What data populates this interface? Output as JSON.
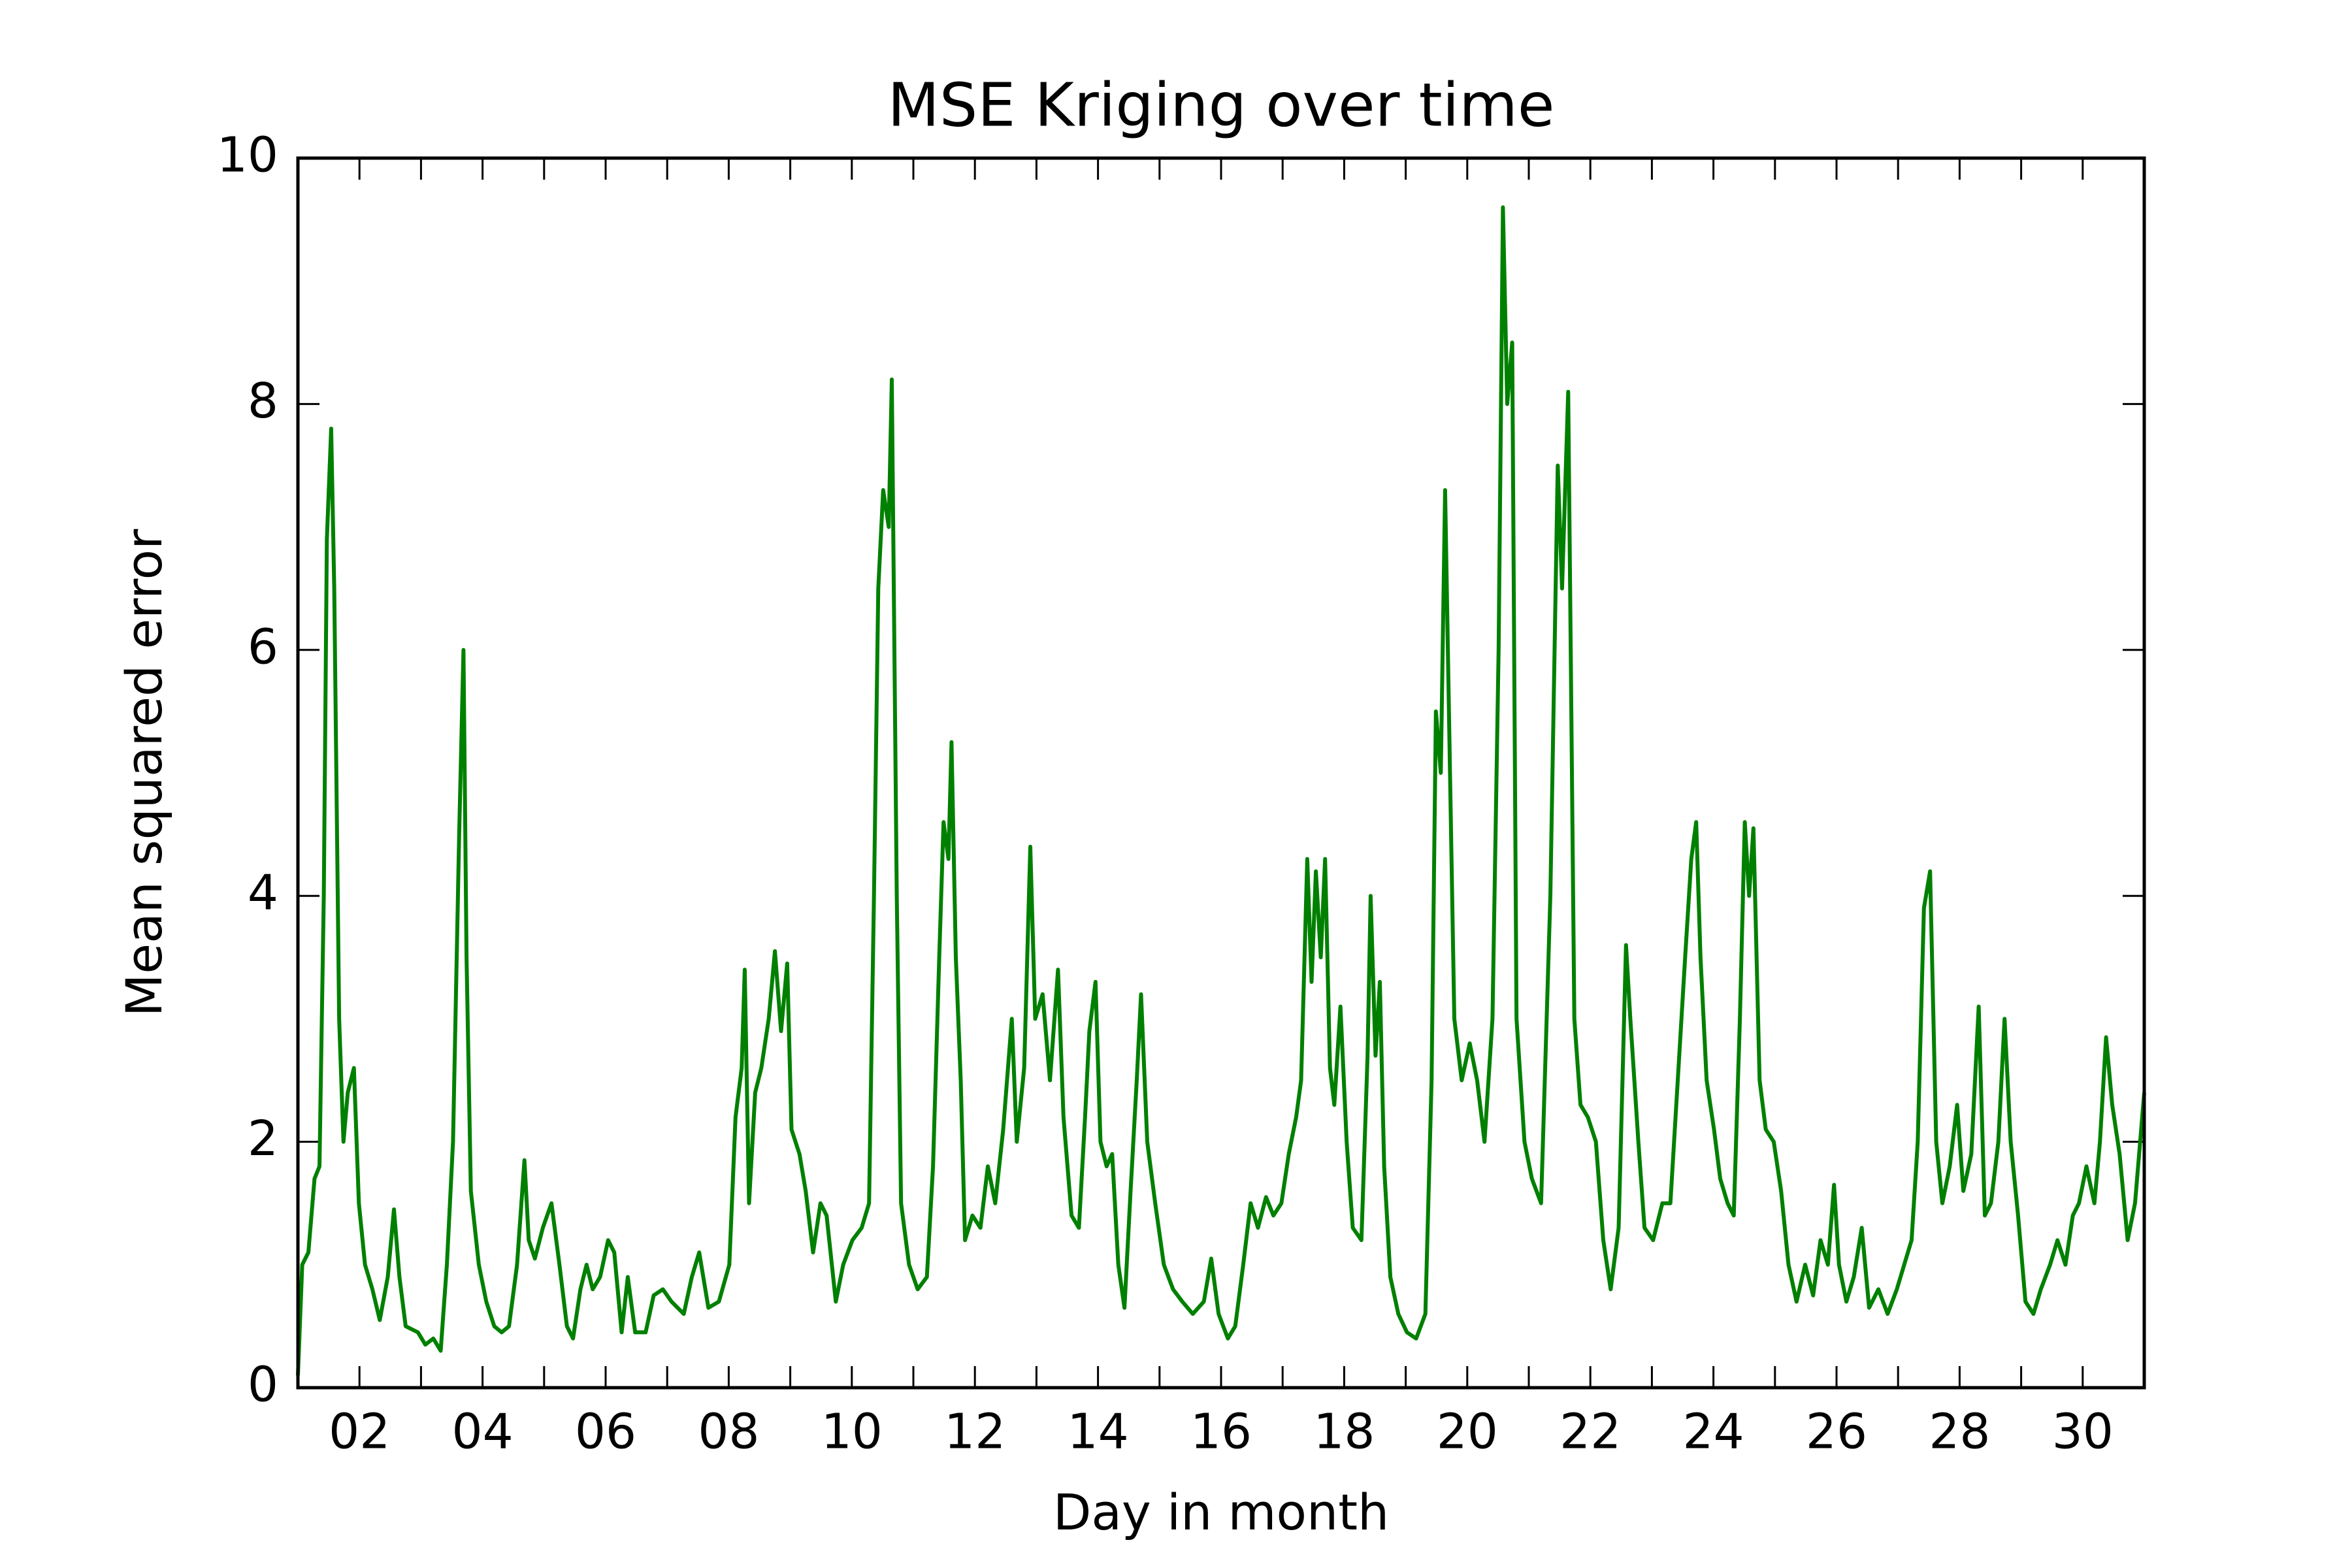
{
  "chart_data": {
    "type": "line",
    "title": "MSE Kriging over time",
    "xlabel": "Day in month",
    "ylabel": "Mean squared error",
    "color": "#008000",
    "xlim": [
      1,
      31
    ],
    "ylim": [
      0,
      10
    ],
    "yticks": [
      0,
      2,
      4,
      6,
      8,
      10
    ],
    "xticks": [
      {
        "value": 2,
        "label": "02"
      },
      {
        "value": 4,
        "label": "04"
      },
      {
        "value": 6,
        "label": "06"
      },
      {
        "value": 8,
        "label": "08"
      },
      {
        "value": 10,
        "label": "10"
      },
      {
        "value": 12,
        "label": "12"
      },
      {
        "value": 14,
        "label": "14"
      },
      {
        "value": 16,
        "label": "16"
      },
      {
        "value": 18,
        "label": "18"
      },
      {
        "value": 20,
        "label": "20"
      },
      {
        "value": 22,
        "label": "22"
      },
      {
        "value": 24,
        "label": "24"
      },
      {
        "value": 26,
        "label": "26"
      },
      {
        "value": 28,
        "label": "28"
      },
      {
        "value": 30,
        "label": "30"
      }
    ],
    "xminorticks": [
      3,
      5,
      7,
      9,
      11,
      13,
      15,
      17,
      19,
      21,
      23,
      25,
      27,
      29
    ],
    "x": [
      1.0,
      1.07,
      1.17,
      1.27,
      1.35,
      1.42,
      1.47,
      1.54,
      1.59,
      1.67,
      1.74,
      1.81,
      1.91,
      1.99,
      2.09,
      2.21,
      2.33,
      2.46,
      2.56,
      2.65,
      2.75,
      2.95,
      3.07,
      3.2,
      3.32,
      3.42,
      3.52,
      3.62,
      3.69,
      3.74,
      3.81,
      3.94,
      4.06,
      4.19,
      4.31,
      4.43,
      4.56,
      4.68,
      4.75,
      4.85,
      4.98,
      5.12,
      5.25,
      5.37,
      5.47,
      5.59,
      5.69,
      5.79,
      5.91,
      6.04,
      6.14,
      6.26,
      6.36,
      6.48,
      6.65,
      6.78,
      6.93,
      7.07,
      7.27,
      7.4,
      7.52,
      7.67,
      7.84,
      8.01,
      8.11,
      8.21,
      8.26,
      8.33,
      8.43,
      8.53,
      8.65,
      8.75,
      8.85,
      8.95,
      9.02,
      9.15,
      9.25,
      9.37,
      9.49,
      9.59,
      9.74,
      9.86,
      10.01,
      10.16,
      10.28,
      10.36,
      10.43,
      10.51,
      10.6,
      10.65,
      10.73,
      10.8,
      10.93,
      11.07,
      11.22,
      11.32,
      11.42,
      11.49,
      11.57,
      11.62,
      11.69,
      11.77,
      11.84,
      11.96,
      12.09,
      12.21,
      12.33,
      12.46,
      12.6,
      12.68,
      12.8,
      12.9,
      12.98,
      13.1,
      13.22,
      13.35,
      13.44,
      13.57,
      13.69,
      13.79,
      13.86,
      13.96,
      14.04,
      14.14,
      14.23,
      14.33,
      14.43,
      14.53,
      14.63,
      14.7,
      14.8,
      14.93,
      15.07,
      15.22,
      15.37,
      15.54,
      15.72,
      15.84,
      15.96,
      16.11,
      16.23,
      16.36,
      16.48,
      16.6,
      16.73,
      16.85,
      16.98,
      17.1,
      17.22,
      17.3,
      17.4,
      17.47,
      17.54,
      17.62,
      17.69,
      17.77,
      17.84,
      17.94,
      18.04,
      18.14,
      18.28,
      18.38,
      18.43,
      18.51,
      18.58,
      18.65,
      18.75,
      18.88,
      19.02,
      19.17,
      19.32,
      19.42,
      19.49,
      19.57,
      19.64,
      19.72,
      19.79,
      19.91,
      20.04,
      20.16,
      20.28,
      20.41,
      20.51,
      20.58,
      20.65,
      20.73,
      20.8,
      20.93,
      21.05,
      21.2,
      21.35,
      21.47,
      21.54,
      21.64,
      21.74,
      21.84,
      21.96,
      22.09,
      22.21,
      22.33,
      22.46,
      22.58,
      22.65,
      22.78,
      22.88,
      23.02,
      23.17,
      23.3,
      23.42,
      23.54,
      23.64,
      23.72,
      23.79,
      23.89,
      24.01,
      24.11,
      24.23,
      24.33,
      24.43,
      24.51,
      24.58,
      24.65,
      24.75,
      24.85,
      24.98,
      25.1,
      25.22,
      25.35,
      25.49,
      25.62,
      25.74,
      25.86,
      25.96,
      26.04,
      26.16,
      26.28,
      26.41,
      26.53,
      26.68,
      26.83,
      26.98,
      27.1,
      27.22,
      27.32,
      27.42,
      27.52,
      27.62,
      27.72,
      27.84,
      27.96,
      28.06,
      28.19,
      28.31,
      28.41,
      28.51,
      28.63,
      28.73,
      28.83,
      28.95,
      29.07,
      29.2,
      29.32,
      29.47,
      29.59,
      29.72,
      29.84,
      29.94,
      30.06,
      30.19,
      30.28,
      30.38,
      30.48,
      30.6,
      30.73,
      30.85,
      31.0
    ],
    "values": [
      0.1,
      1.0,
      1.1,
      1.7,
      1.8,
      4.0,
      6.9,
      7.8,
      6.5,
      3.0,
      2.0,
      2.4,
      2.6,
      1.5,
      1.0,
      0.8,
      0.55,
      0.9,
      1.45,
      0.9,
      0.5,
      0.45,
      0.35,
      0.4,
      0.3,
      1.0,
      2.0,
      4.5,
      6.0,
      3.5,
      1.6,
      1.0,
      0.7,
      0.5,
      0.45,
      0.5,
      1.0,
      1.85,
      1.2,
      1.05,
      1.3,
      1.5,
      1.0,
      0.5,
      0.4,
      0.8,
      1.0,
      0.8,
      0.9,
      1.2,
      1.1,
      0.45,
      0.9,
      0.45,
      0.45,
      0.75,
      0.8,
      0.7,
      0.6,
      0.9,
      1.1,
      0.65,
      0.7,
      1.0,
      2.2,
      2.6,
      3.4,
      1.5,
      2.4,
      2.6,
      3.0,
      3.55,
      2.9,
      3.45,
      2.1,
      1.9,
      1.6,
      1.1,
      1.5,
      1.4,
      0.7,
      1.0,
      1.2,
      1.3,
      1.5,
      4.0,
      6.5,
      7.3,
      7.0,
      8.2,
      4.0,
      1.5,
      1.0,
      0.8,
      0.9,
      1.8,
      3.5,
      4.6,
      4.3,
      5.25,
      3.5,
      2.5,
      1.2,
      1.4,
      1.3,
      1.8,
      1.5,
      2.1,
      3.0,
      2.0,
      2.6,
      4.4,
      3.0,
      3.2,
      2.5,
      3.4,
      2.2,
      1.4,
      1.3,
      2.2,
      2.9,
      3.3,
      2.0,
      1.8,
      1.9,
      1.0,
      0.65,
      1.6,
      2.5,
      3.2,
      2.0,
      1.5,
      1.0,
      0.8,
      0.7,
      0.6,
      0.7,
      1.05,
      0.6,
      0.4,
      0.5,
      1.0,
      1.5,
      1.3,
      1.55,
      1.4,
      1.5,
      1.9,
      2.2,
      2.5,
      4.3,
      3.3,
      4.2,
      3.5,
      4.3,
      2.6,
      2.3,
      3.1,
      2.0,
      1.3,
      1.2,
      2.7,
      4.0,
      2.7,
      3.3,
      1.8,
      0.9,
      0.6,
      0.45,
      0.4,
      0.6,
      2.5,
      5.5,
      5.0,
      7.3,
      5.0,
      3.0,
      2.5,
      2.8,
      2.5,
      2.0,
      3.0,
      6.0,
      9.6,
      8.0,
      8.5,
      3.0,
      2.0,
      1.7,
      1.5,
      4.0,
      7.5,
      6.5,
      8.1,
      3.0,
      2.3,
      2.2,
      2.0,
      1.2,
      0.8,
      1.3,
      3.6,
      3.0,
      2.0,
      1.3,
      1.2,
      1.5,
      1.5,
      2.5,
      3.5,
      4.3,
      4.6,
      3.5,
      2.5,
      2.1,
      1.7,
      1.5,
      1.4,
      3.0,
      4.6,
      4.0,
      4.55,
      2.5,
      2.1,
      2.0,
      1.6,
      1.0,
      0.7,
      1.0,
      0.75,
      1.2,
      1.0,
      1.65,
      1.0,
      0.7,
      0.9,
      1.3,
      0.65,
      0.8,
      0.6,
      0.8,
      1.0,
      1.2,
      2.0,
      3.9,
      4.2,
      2.0,
      1.5,
      1.8,
      2.3,
      1.6,
      1.9,
      3.1,
      1.4,
      1.5,
      2.0,
      3.0,
      2.0,
      1.4,
      0.7,
      0.6,
      0.8,
      1.0,
      1.2,
      1.0,
      1.4,
      1.5,
      1.8,
      1.5,
      2.0,
      2.85,
      2.3,
      1.9,
      1.2,
      1.5,
      2.4
    ]
  }
}
